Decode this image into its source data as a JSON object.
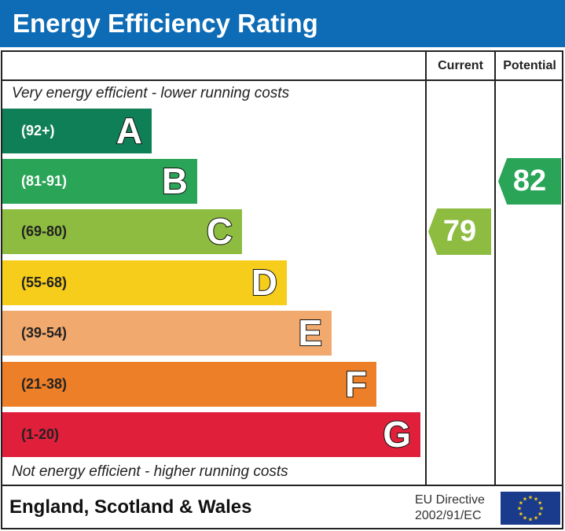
{
  "header": {
    "title": "Energy Efficiency Rating"
  },
  "columns": {
    "current": "Current",
    "potential": "Potential"
  },
  "captions": {
    "top": "Very energy efficient - lower running costs",
    "bottom": "Not energy efficient - higher running costs"
  },
  "chart_data": {
    "type": "bar",
    "categories": [
      "A",
      "B",
      "C",
      "D",
      "E",
      "F",
      "G"
    ],
    "ranges": [
      "(92+)",
      "(81-91)",
      "(69-80)",
      "(55-68)",
      "(39-54)",
      "(21-38)",
      "(1-20)"
    ],
    "colors": [
      "#0f7f57",
      "#2aa457",
      "#8dbc40",
      "#f6cd1a",
      "#f2a96e",
      "#ec7f27",
      "#e01f3b"
    ],
    "current": {
      "value": "79",
      "band": "C"
    },
    "potential": {
      "value": "82",
      "band": "B"
    }
  },
  "footer": {
    "region": "England, Scotland & Wales",
    "directive_line1": "EU Directive",
    "directive_line2": "2002/91/EC"
  }
}
